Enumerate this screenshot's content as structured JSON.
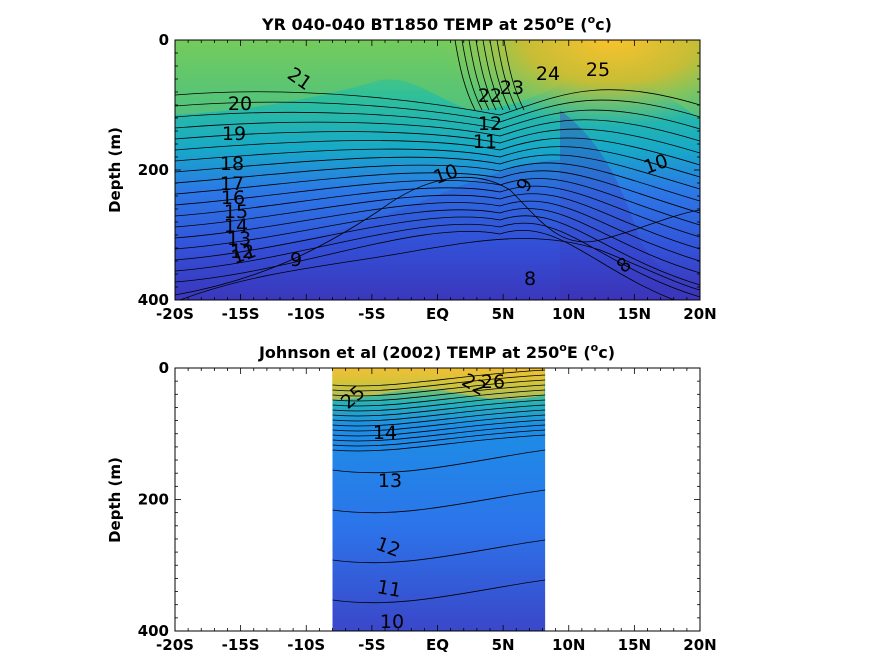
{
  "chart_data": [
    {
      "type": "heatmap",
      "title": "YR 040-040 BT1850 TEMP at 250",
      "title_super": "o",
      "title_tail": "E (",
      "title_unit_super": "o",
      "title_unit_tail": "c)",
      "ylabel": "Depth (m)",
      "xlim": [
        -20,
        20
      ],
      "ylim": [
        0,
        400
      ],
      "x_ticks": [
        "-20S",
        "-15S",
        "-10S",
        "-5S",
        "EQ",
        "5N",
        "10N",
        "15N",
        "20N"
      ],
      "y_ticks": [
        "0",
        "200",
        "400"
      ],
      "data_x_range": [
        -20,
        20
      ],
      "colormap": [
        "#3d26a8",
        "#2d5ee8",
        "#1f96e0",
        "#10b9bd",
        "#59c864",
        "#c1bd38",
        "#f9c22d"
      ],
      "contour_labels": [
        "21",
        "20",
        "19",
        "18",
        "17",
        "16",
        "15",
        "14",
        "13",
        "12",
        "11",
        "9",
        "10",
        "9",
        "8",
        "8",
        "10",
        "24",
        "25",
        "23",
        "22",
        "12",
        "11"
      ]
    },
    {
      "type": "heatmap",
      "title": "Johnson et al (2002) TEMP at 250",
      "title_super": "o",
      "title_tail": "E (",
      "title_unit_super": "o",
      "title_unit_tail": "c)",
      "ylabel": "Depth (m)",
      "xlim": [
        -20,
        20
      ],
      "ylim": [
        0,
        400
      ],
      "x_ticks": [
        "-20S",
        "-15S",
        "-10S",
        "-5S",
        "EQ",
        "5N",
        "10N",
        "15N",
        "20N"
      ],
      "y_ticks": [
        "0",
        "200",
        "400"
      ],
      "data_x_range": [
        -8,
        8.2
      ],
      "colormap": [
        "#3d26a8",
        "#2d5ee8",
        "#1f96e0",
        "#10b9bd",
        "#59c864",
        "#c1bd38",
        "#f9c22d"
      ],
      "contour_labels": [
        "25",
        "22",
        "26",
        "14",
        "13",
        "12",
        "11",
        "10"
      ]
    }
  ]
}
